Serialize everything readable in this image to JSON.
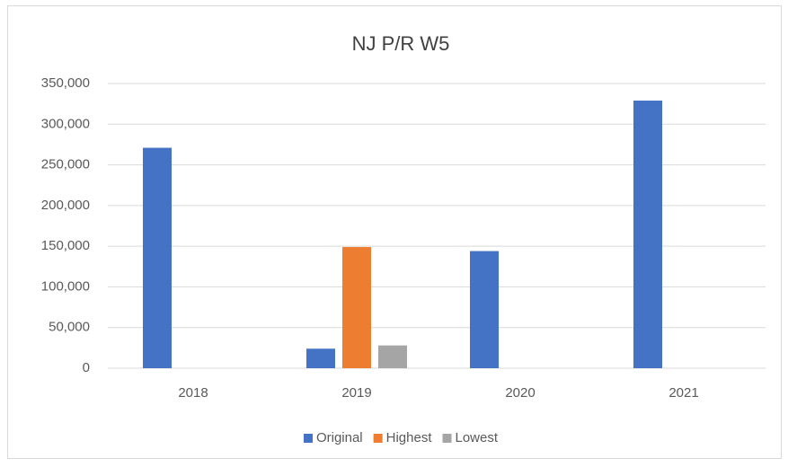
{
  "chart_data": {
    "type": "bar",
    "title": "NJ P/R W5",
    "categories": [
      "2018",
      "2019",
      "2020",
      "2021"
    ],
    "series": [
      {
        "name": "Original",
        "color": "#4472c4",
        "values": [
          271000,
          24000,
          144000,
          329000
        ]
      },
      {
        "name": "Highest",
        "color": "#ed7d31",
        "values": [
          null,
          149000,
          null,
          null
        ]
      },
      {
        "name": "Lowest",
        "color": "#a5a5a5",
        "values": [
          null,
          28000,
          null,
          null
        ]
      }
    ],
    "ylim": [
      0,
      350000
    ],
    "yticks": [
      0,
      {
        "value": 50000,
        "label": "50,000"
      },
      {
        "value": 100000,
        "label": "100,000"
      },
      {
        "value": 150000,
        "label": "150,000"
      },
      {
        "value": 200000,
        "label": "200,000"
      },
      {
        "value": 250000,
        "label": "250,000"
      },
      {
        "value": 300000,
        "label": "300,000"
      },
      {
        "value": 350000,
        "label": "350,000"
      }
    ],
    "grid": true,
    "legend": "bottom"
  }
}
